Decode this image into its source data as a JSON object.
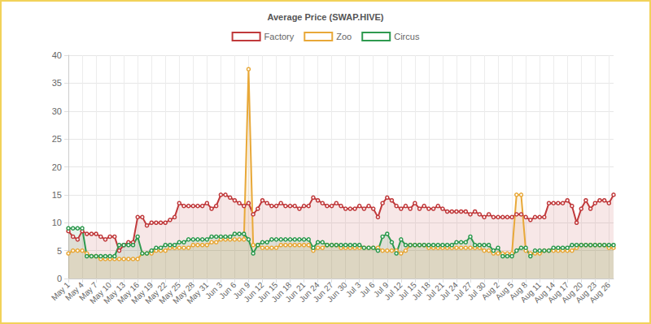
{
  "chart_data": {
    "type": "line",
    "title": "Average Price (SWAP.HIVE)",
    "categories": [
      "May 1",
      null,
      null,
      "May 4",
      null,
      null,
      "May 7",
      null,
      null,
      "May 10",
      null,
      null,
      "May 13",
      null,
      null,
      "May 16",
      null,
      null,
      "May 19",
      null,
      null,
      "May 22",
      null,
      null,
      "May 25",
      null,
      null,
      "May 28",
      null,
      null,
      "May 31",
      null,
      null,
      "Jun 3",
      null,
      null,
      "Jun 6",
      null,
      null,
      "Jun 9",
      null,
      null,
      "Jun 12",
      null,
      null,
      "Jun 15",
      null,
      null,
      "Jun 18",
      null,
      null,
      "Jun 21",
      null,
      null,
      "Jun 24",
      null,
      null,
      "Jun 27",
      null,
      null,
      "Jun 30",
      null,
      null,
      "Jul 3",
      null,
      null,
      "Jul 6",
      null,
      null,
      "Jul 9",
      null,
      null,
      "Jul 12",
      null,
      null,
      "Jul 15",
      null,
      null,
      "Jul 18",
      null,
      null,
      "Jul 21",
      null,
      null,
      "Jul 24",
      null,
      null,
      "Jul 27",
      null,
      null,
      "Jul 30",
      null,
      null,
      "Aug 2",
      null,
      null,
      "Aug 5",
      null,
      null,
      "Aug 8",
      null,
      null,
      "Aug 11",
      null,
      null,
      "Aug 14",
      null,
      null,
      "Aug 17",
      null,
      null,
      "Aug 20",
      null,
      null,
      "Aug 23",
      null,
      null,
      "Aug 26",
      null
    ],
    "series": [
      {
        "name": "Factory",
        "color": "#c0393b",
        "values": [
          8.5,
          7.5,
          7,
          8.5,
          8,
          8,
          8,
          7.5,
          7,
          7.5,
          7.5,
          5,
          6,
          6.5,
          6.5,
          11,
          11,
          9.5,
          10,
          10,
          10,
          10,
          10.5,
          11,
          13.5,
          13,
          13,
          13,
          13,
          13,
          13.5,
          12.5,
          13,
          15,
          15,
          14.5,
          14,
          13.5,
          13,
          13.5,
          11.5,
          12.5,
          14,
          13.5,
          13,
          13,
          13.5,
          13,
          13,
          13,
          12.5,
          13,
          13,
          14.5,
          14,
          13.5,
          13,
          13,
          13.5,
          13,
          12.5,
          12.5,
          12.5,
          13,
          12.5,
          13,
          12.5,
          11,
          13.5,
          14.5,
          14,
          13,
          12.5,
          13,
          12.5,
          13.5,
          12.5,
          13,
          12.5,
          12.5,
          13,
          12.5,
          12,
          12,
          12,
          12,
          12,
          11.5,
          12,
          11.5,
          11,
          11.5,
          11,
          11,
          11,
          11,
          11,
          11.5,
          11.5,
          11,
          10.5,
          11,
          11,
          11,
          13.5,
          13.5,
          13.5,
          13.5,
          14,
          13,
          10,
          12.5,
          14,
          12.5,
          13.5,
          14,
          14,
          13.5,
          15
        ]
      },
      {
        "name": "Zoo",
        "color": "#e8a838",
        "values": [
          4.5,
          5,
          5,
          5,
          4.5,
          4,
          4,
          3.5,
          3.5,
          3.5,
          3.5,
          3.5,
          3.5,
          3.5,
          3.5,
          3.5,
          4.5,
          4.5,
          4.5,
          5,
          5,
          5,
          5.5,
          5.5,
          5.5,
          5.5,
          5.5,
          6,
          6,
          6,
          6,
          6.5,
          6.5,
          7,
          7,
          7,
          7,
          7,
          7,
          37.5,
          6,
          6,
          5.5,
          5.5,
          5.5,
          5.5,
          6,
          6,
          6,
          6,
          6,
          6,
          6,
          5,
          5.5,
          5.5,
          6,
          6,
          6,
          5.5,
          5.5,
          5.5,
          5.5,
          5.5,
          5.5,
          5.5,
          5.5,
          5.5,
          5,
          5,
          5,
          5,
          4.5,
          5,
          6,
          6,
          6,
          6,
          5.5,
          5.5,
          5.5,
          5.5,
          5.5,
          5.5,
          5.5,
          5.5,
          5.5,
          5.5,
          5.5,
          5.5,
          5,
          5,
          4.5,
          4.5,
          4.5,
          4.5,
          4.5,
          15,
          15,
          5,
          4.5,
          4.5,
          4.5,
          5,
          5,
          5,
          5,
          5,
          5,
          5,
          5.5,
          6,
          6,
          6,
          6,
          6,
          6,
          5.5,
          5.5
        ]
      },
      {
        "name": "Circus",
        "color": "#2e9a4f",
        "values": [
          9,
          9,
          9,
          9,
          4,
          4,
          4,
          4,
          4,
          4,
          4,
          6,
          6,
          6,
          6,
          7.5,
          4.5,
          4.5,
          5,
          5.5,
          5.5,
          6,
          6,
          6,
          6.5,
          6.5,
          7,
          7,
          7,
          7,
          7,
          7.5,
          7.5,
          7.5,
          7.5,
          7.5,
          8,
          8,
          8,
          7,
          4.5,
          6,
          6.5,
          6.5,
          7,
          7,
          7,
          7,
          7,
          7,
          7,
          7,
          7,
          5.5,
          6.5,
          6.5,
          6,
          6,
          6,
          6,
          6,
          6,
          6,
          6,
          5.5,
          5.5,
          5.5,
          5,
          7.5,
          8,
          6.5,
          4.5,
          7,
          6,
          6,
          6,
          6,
          6,
          6,
          6,
          6,
          6,
          6,
          6,
          6.5,
          6.5,
          6.5,
          7.5,
          6,
          6,
          6,
          6,
          5,
          5.5,
          4,
          4,
          4,
          5,
          5.5,
          5.5,
          4,
          5,
          5,
          5,
          5,
          5.5,
          5.5,
          5.5,
          5.5,
          6,
          6,
          6,
          6,
          6,
          6,
          6,
          6,
          6,
          6
        ]
      }
    ],
    "ylim": [
      0,
      40
    ],
    "yticks": [
      0,
      5,
      10,
      15,
      20,
      25,
      30,
      35,
      40
    ],
    "grid": true,
    "legend": "top",
    "marker": "circle",
    "line_style": "solid"
  }
}
